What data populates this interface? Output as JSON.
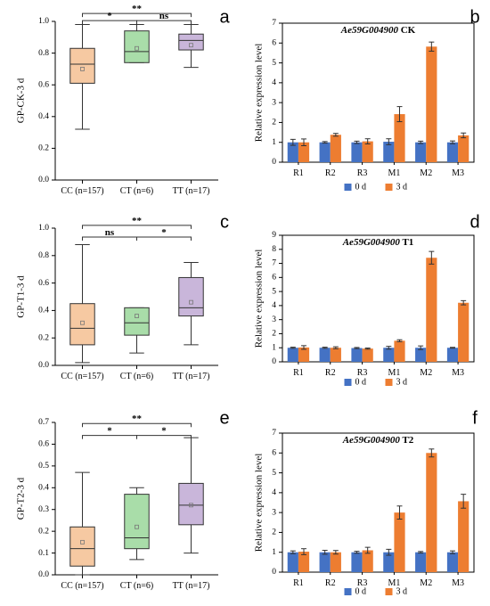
{
  "chart_data": [
    {
      "id": "a",
      "type": "box",
      "panel_letter": "a",
      "ylabel": "GP-CK-3 d",
      "ylim": [
        0,
        1.0
      ],
      "yticks": [
        "0.0",
        "0.2",
        "0.4",
        "0.6",
        "0.8",
        "1.0"
      ],
      "categories": [
        "CC (n=157)",
        "CT (n=6)",
        "TT (n=17)"
      ],
      "colors": [
        "#F6C9A2",
        "#A9DDA9",
        "#C9B6DA"
      ],
      "boxes": [
        {
          "whisker_low": 0.32,
          "q1": 0.61,
          "median": 0.73,
          "q3": 0.83,
          "whisker_high": 0.98,
          "mean": 0.7
        },
        {
          "whisker_low": 0.74,
          "q1": 0.74,
          "median": 0.81,
          "q3": 0.94,
          "whisker_high": 0.98,
          "mean": 0.83
        },
        {
          "whisker_low": 0.71,
          "q1": 0.82,
          "median": 0.88,
          "q3": 0.92,
          "whisker_high": 0.98,
          "mean": 0.85
        }
      ],
      "significance": [
        {
          "from": 0,
          "to": 2,
          "label": "**",
          "level": 1.05
        },
        {
          "from": 0,
          "to": 1,
          "label": "*",
          "level": 1.005
        },
        {
          "from": 1,
          "to": 2,
          "label": "ns",
          "level": 1.005
        }
      ]
    },
    {
      "id": "b",
      "type": "bar",
      "panel_letter": "b",
      "title_italic": "Ae59G004900",
      "title_suffix": " CK",
      "ylabel": "Relative expression level",
      "ylim": [
        0,
        7
      ],
      "yticks": [
        "0",
        "1",
        "2",
        "3",
        "4",
        "5",
        "6",
        "7"
      ],
      "categories": [
        "R1",
        "R2",
        "R3",
        "M1",
        "M2",
        "M3"
      ],
      "series": [
        {
          "name": "0 d",
          "color": "#4472C4",
          "values": [
            1.0,
            1.0,
            1.0,
            1.03,
            1.0,
            1.0
          ],
          "errors": [
            0.15,
            0.04,
            0.06,
            0.15,
            0.06,
            0.07
          ]
        },
        {
          "name": "3 d",
          "color": "#ED7D31",
          "values": [
            1.0,
            1.38,
            1.05,
            2.42,
            5.82,
            1.35
          ],
          "errors": [
            0.17,
            0.07,
            0.13,
            0.38,
            0.23,
            0.12
          ]
        }
      ]
    },
    {
      "id": "c",
      "type": "box",
      "panel_letter": "c",
      "ylabel": "GP-T1-3 d",
      "ylim": [
        0,
        1.0
      ],
      "yticks": [
        "0.0",
        "0.2",
        "0.4",
        "0.6",
        "0.8",
        "1.0"
      ],
      "categories": [
        "CC (n=157)",
        "CT (n=6)",
        "TT (n=17)"
      ],
      "colors": [
        "#F6C9A2",
        "#A9DDA9",
        "#C9B6DA"
      ],
      "boxes": [
        {
          "whisker_low": 0.02,
          "q1": 0.15,
          "median": 0.27,
          "q3": 0.45,
          "whisker_high": 0.88,
          "mean": 0.31
        },
        {
          "whisker_low": 0.09,
          "q1": 0.22,
          "median": 0.31,
          "q3": 0.42,
          "whisker_high": 0.42,
          "mean": 0.36
        },
        {
          "whisker_low": 0.15,
          "q1": 0.36,
          "median": 0.42,
          "q3": 0.64,
          "whisker_high": 0.75,
          "mean": 0.46
        }
      ],
      "significance": [
        {
          "from": 0,
          "to": 2,
          "label": "**",
          "level": 1.02
        },
        {
          "from": 0,
          "to": 1,
          "label": "ns",
          "level": 0.935
        },
        {
          "from": 1,
          "to": 2,
          "label": "*",
          "level": 0.935
        }
      ]
    },
    {
      "id": "d",
      "type": "bar",
      "panel_letter": "d",
      "title_italic": "Ae59G004900",
      "title_suffix": " T1",
      "ylabel": "Relative expression level",
      "ylim": [
        0,
        9
      ],
      "yticks": [
        "0",
        "1",
        "2",
        "3",
        "4",
        "5",
        "6",
        "7",
        "8",
        "9"
      ],
      "categories": [
        "R1",
        "R2",
        "R3",
        "M1",
        "M2",
        "M3"
      ],
      "series": [
        {
          "name": "0 d",
          "color": "#4472C4",
          "values": [
            1.0,
            1.0,
            0.98,
            1.0,
            1.0,
            1.0
          ],
          "errors": [
            0.04,
            0.04,
            0.04,
            0.1,
            0.13,
            0.03
          ]
        },
        {
          "name": "3 d",
          "color": "#ED7D31",
          "values": [
            1.02,
            1.0,
            0.94,
            1.5,
            7.4,
            4.2
          ],
          "errors": [
            0.13,
            0.07,
            0.04,
            0.07,
            0.45,
            0.15
          ]
        }
      ]
    },
    {
      "id": "e",
      "type": "box",
      "panel_letter": "e",
      "ylabel": "GP-T2-3 d",
      "ylim": [
        0,
        0.7
      ],
      "yticks": [
        "0.0",
        "0.1",
        "0.2",
        "0.3",
        "0.4",
        "0.5",
        "0.6",
        "0.7"
      ],
      "categories": [
        "CC (n=157)",
        "CT (n=6)",
        "TT (n=17)"
      ],
      "colors": [
        "#F6C9A2",
        "#A9DDA9",
        "#C9B6DA"
      ],
      "boxes": [
        {
          "whisker_low": 0.0,
          "q1": 0.04,
          "median": 0.12,
          "q3": 0.22,
          "whisker_high": 0.47,
          "mean": 0.15
        },
        {
          "whisker_low": 0.07,
          "q1": 0.12,
          "median": 0.17,
          "q3": 0.37,
          "whisker_high": 0.4,
          "mean": 0.22
        },
        {
          "whisker_low": 0.1,
          "q1": 0.23,
          "median": 0.32,
          "q3": 0.42,
          "whisker_high": 0.63,
          "mean": 0.32
        }
      ],
      "significance": [
        {
          "from": 0,
          "to": 2,
          "label": "**",
          "level": 0.695
        },
        {
          "from": 0,
          "to": 1,
          "label": "*",
          "level": 0.64
        },
        {
          "from": 1,
          "to": 2,
          "label": "*",
          "level": 0.64
        }
      ]
    },
    {
      "id": "f",
      "type": "bar",
      "panel_letter": "f",
      "title_italic": "Ae59G004900",
      "title_suffix": " T2",
      "ylabel": "Relative expression level",
      "ylim": [
        0,
        7
      ],
      "yticks": [
        "0",
        "1",
        "2",
        "3",
        "4",
        "5",
        "6",
        "7"
      ],
      "categories": [
        "R1",
        "R2",
        "R3",
        "M1",
        "M2",
        "M3"
      ],
      "series": [
        {
          "name": "0 d",
          "color": "#4472C4",
          "values": [
            1.0,
            1.0,
            1.0,
            1.0,
            1.0,
            1.0
          ],
          "errors": [
            0.07,
            0.1,
            0.05,
            0.15,
            0.04,
            0.07
          ]
        },
        {
          "name": "3 d",
          "color": "#ED7D31",
          "values": [
            1.03,
            1.0,
            1.1,
            3.0,
            6.0,
            3.57
          ],
          "errors": [
            0.15,
            0.09,
            0.15,
            0.33,
            0.2,
            0.35
          ]
        }
      ]
    }
  ]
}
